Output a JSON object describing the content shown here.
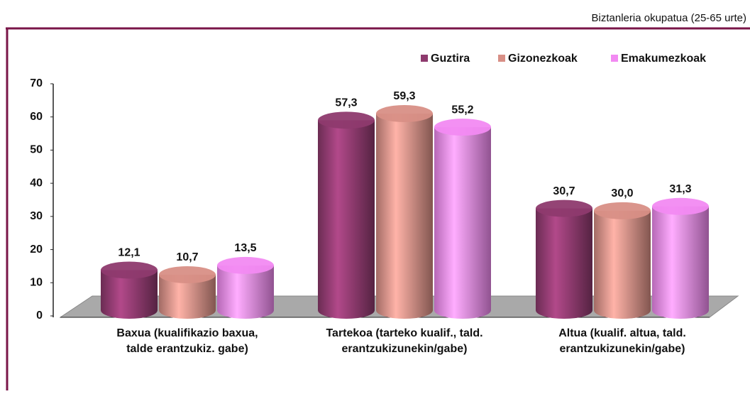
{
  "chart_data": {
    "type": "bar3d",
    "subtitle": "Biztanleria okupatua (25-65 urte)",
    "categories": [
      [
        "Baxua (kualifikazio baxua,",
        "talde erantzukiz. gabe)"
      ],
      [
        "Tartekoa (tarteko kualif., tald.",
        "erantzukizunekin/gabe)"
      ],
      [
        "Altua (kualif. altua, tald.",
        "erantzukizunekin/gabe)"
      ]
    ],
    "series": [
      {
        "name": "Guztira",
        "color": "#8e3a6e",
        "values": [
          12.1,
          57.3,
          30.7
        ],
        "value_labels": [
          "12,1",
          "57,3",
          "30,7"
        ]
      },
      {
        "name": "Gizonezkoak",
        "color": "#d88f86",
        "values": [
          10.7,
          59.3,
          30.0
        ],
        "value_labels": [
          "10,7",
          "59,3",
          "30,0"
        ]
      },
      {
        "name": "Emakumezkoak",
        "color": "#f28af2",
        "values": [
          13.5,
          55.2,
          31.3
        ],
        "value_labels": [
          "13,5",
          "55,2",
          "31,3"
        ]
      }
    ],
    "ylim": [
      0,
      70
    ],
    "yticks": [
      0,
      10,
      20,
      30,
      40,
      50,
      60,
      70
    ],
    "legend": "top-right"
  }
}
